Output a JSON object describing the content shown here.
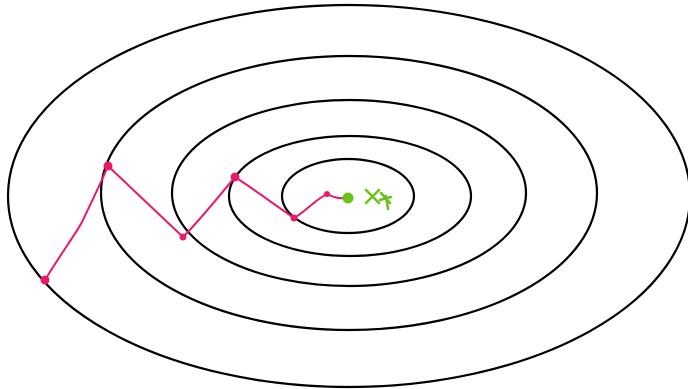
{
  "diagram": {
    "contour_count": 5,
    "path_point_count": 7,
    "colors": {
      "background": "#ffffff",
      "contour": "#000000",
      "path": "#e8186c",
      "minimum": "#6cc21a"
    },
    "optimum_label": "x*"
  }
}
